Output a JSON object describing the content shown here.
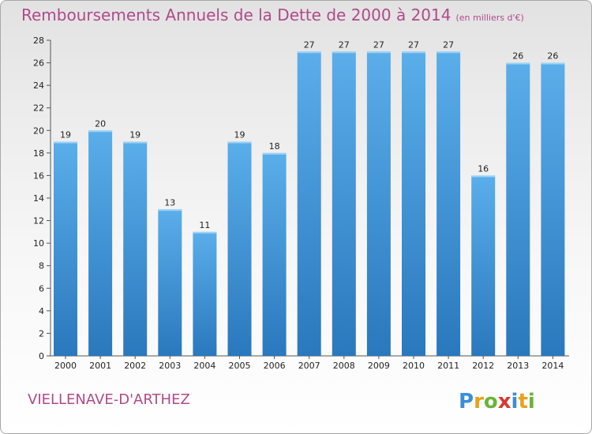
{
  "title": "Remboursements Annuels de la Dette de 2000 à 2014",
  "unit_note": "(en milliers d'€)",
  "commune": "VIELLENAVE-D'ARTHEZ",
  "logo_text": "Proxiti",
  "colors": {
    "title": "#b04a8a",
    "bar_light": "#5aaeea",
    "bar_dark": "#2a78bd"
  },
  "chart_data": {
    "type": "bar",
    "title": "Remboursements Annuels de la Dette de 2000 à 2014",
    "categories": [
      "2000",
      "2001",
      "2002",
      "2003",
      "2004",
      "2005",
      "2006",
      "2007",
      "2008",
      "2009",
      "2010",
      "2011",
      "2012",
      "2013",
      "2014"
    ],
    "values": [
      19,
      20,
      19,
      13,
      11,
      19,
      18,
      27,
      27,
      27,
      27,
      27,
      16,
      26,
      26
    ],
    "data_labels": [
      "19",
      "20",
      "19",
      "13",
      "11",
      "19",
      "18",
      "27",
      "27",
      "27",
      "27",
      "27",
      "16",
      "26",
      "26"
    ],
    "ylim": [
      0,
      28
    ],
    "yticks": [
      "0",
      "2",
      "4",
      "6",
      "8",
      "10",
      "12",
      "14",
      "16",
      "18",
      "20",
      "22",
      "24",
      "26",
      "28"
    ],
    "grid": false,
    "legend": "none"
  }
}
